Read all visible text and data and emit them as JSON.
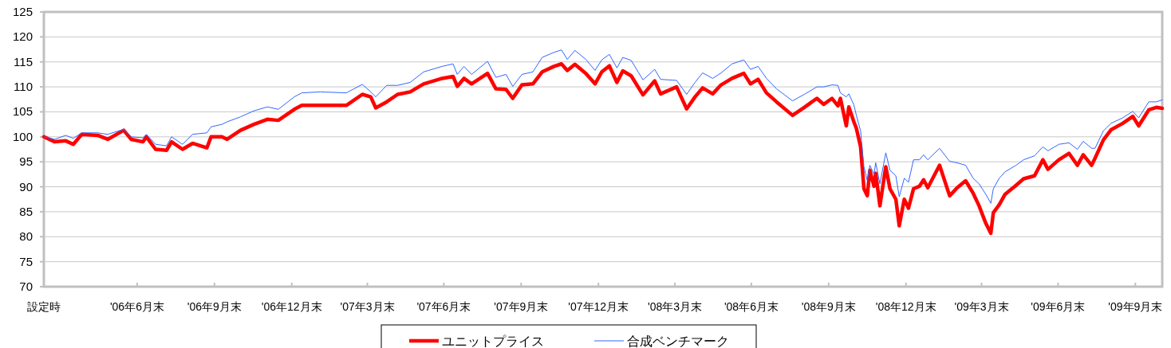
{
  "chart_data": {
    "type": "line",
    "x": [
      "2006-03-11",
      "2006-03-24",
      "2006-04-06",
      "2006-04-15",
      "2006-04-25",
      "2006-05-14",
      "2006-05-26",
      "2006-06-14",
      "2006-06-23",
      "2006-07-07",
      "2006-07-11",
      "2006-07-22",
      "2006-08-04",
      "2006-08-10",
      "2006-08-23",
      "2006-09-04",
      "2006-09-21",
      "2006-09-26",
      "2006-10-09",
      "2006-10-15",
      "2006-10-31",
      "2006-11-16",
      "2006-12-02",
      "2006-12-15",
      "2007-01-03",
      "2007-01-12",
      "2007-02-03",
      "2007-03-06",
      "2007-03-25",
      "2007-04-04",
      "2007-04-10",
      "2007-04-23",
      "2007-05-06",
      "2007-05-21",
      "2007-06-06",
      "2007-06-28",
      "2007-07-11",
      "2007-07-16",
      "2007-07-24",
      "2007-08-02",
      "2007-08-21",
      "2007-08-31",
      "2007-09-12",
      "2007-09-20",
      "2007-10-01",
      "2007-10-14",
      "2007-10-25",
      "2007-11-08",
      "2007-11-17",
      "2007-11-24",
      "2007-12-03",
      "2007-12-16",
      "2007-12-27",
      "2008-01-04",
      "2008-01-13",
      "2008-01-22",
      "2008-01-29",
      "2008-02-08",
      "2008-02-22",
      "2008-03-07",
      "2008-03-14",
      "2008-04-02",
      "2008-04-14",
      "2008-04-24",
      "2008-05-03",
      "2008-05-15",
      "2008-05-25",
      "2008-06-07",
      "2008-06-21",
      "2008-06-29",
      "2008-07-08",
      "2008-07-18",
      "2008-07-30",
      "2008-08-18",
      "2008-09-01",
      "2008-09-16",
      "2008-09-24",
      "2008-10-04",
      "2008-10-11",
      "2008-10-14",
      "2008-10-21",
      "2008-10-24",
      "2008-10-30",
      "2008-11-02",
      "2008-11-07",
      "2008-11-11",
      "2008-11-15",
      "2008-11-18",
      "2008-11-23",
      "2008-11-25",
      "2008-11-30",
      "2008-12-07",
      "2008-12-12",
      "2008-12-19",
      "2008-12-23",
      "2008-12-29",
      "2009-01-03",
      "2009-01-09",
      "2009-01-16",
      "2009-01-21",
      "2009-01-26",
      "2009-02-09",
      "2009-02-21",
      "2009-03-02",
      "2009-03-12",
      "2009-03-21",
      "2009-03-28",
      "2009-04-05",
      "2009-04-11",
      "2009-04-14",
      "2009-04-21",
      "2009-04-28",
      "2009-05-11",
      "2009-05-20",
      "2009-06-02",
      "2009-06-12",
      "2009-06-18",
      "2009-07-01",
      "2009-07-13",
      "2009-07-23",
      "2009-07-30",
      "2009-08-09",
      "2009-08-13",
      "2009-08-23",
      "2009-09-01",
      "2009-09-15",
      "2009-09-27",
      "2009-10-04",
      "2009-10-16",
      "2009-10-25",
      "2009-11-01"
    ],
    "series": [
      {
        "name": "ユニットプライス",
        "color": "#ff0000",
        "values": [
          100,
          99,
          99.2,
          98.5,
          100.5,
          100.3,
          99.5,
          101.3,
          99.5,
          99,
          100,
          97.5,
          97.3,
          99,
          97.5,
          98.7,
          97.8,
          100,
          100,
          99.5,
          101.3,
          102.5,
          103.5,
          103.3,
          105.5,
          106.3,
          106.3,
          106.3,
          108.5,
          108,
          105.8,
          107,
          108.5,
          109,
          110.6,
          111.7,
          112.1,
          110.1,
          111.7,
          110.6,
          112.7,
          109.6,
          109.5,
          107.7,
          110.4,
          110.6,
          113,
          114.1,
          114.6,
          113.3,
          114.5,
          112.7,
          110.6,
          113,
          114.2,
          110.9,
          113.2,
          112.2,
          108.4,
          111.2,
          108.6,
          110,
          105.6,
          108,
          109.8,
          108.6,
          110.4,
          111.7,
          112.7,
          110.6,
          111.5,
          108.8,
          107,
          104.3,
          105.9,
          107.7,
          106.5,
          107.7,
          106.2,
          107.7,
          102.2,
          106,
          103,
          101.7,
          98,
          89.6,
          88.2,
          93.3,
          90.1,
          92.7,
          86.2,
          94,
          89.6,
          87.5,
          82.2,
          87.5,
          85.7,
          89.6,
          90.1,
          91.4,
          89.8,
          94.3,
          88.2,
          89.8,
          91.2,
          88.7,
          86.2,
          82.7,
          80.7,
          84.8,
          86.4,
          88.5,
          90.3,
          91.6,
          92.2,
          95.4,
          93.5,
          95.4,
          96.7,
          94.3,
          96.4,
          94.3,
          95.7,
          99.4,
          101.4,
          102.7,
          104.1,
          102.2,
          105.4,
          105.9,
          105.7
        ]
      },
      {
        "name": "合成ベンチマーク",
        "color": "#3366ff",
        "values": [
          100,
          99.5,
          100.3,
          99.7,
          100.8,
          100.8,
          100.5,
          101.5,
          100,
          99.8,
          100.5,
          98.5,
          98.2,
          100,
          98.5,
          100.5,
          100.8,
          102,
          102.5,
          103,
          104,
          105.2,
          106,
          105.5,
          108,
          108.8,
          109,
          108.8,
          110.5,
          109,
          108,
          110.3,
          110.3,
          110.9,
          113,
          114.1,
          114.6,
          112.5,
          114.1,
          112.5,
          115.1,
          111.9,
          112.5,
          110.1,
          112.5,
          113,
          115.9,
          116.9,
          117.4,
          115.5,
          117.3,
          115.5,
          113.3,
          115.4,
          116.5,
          113.8,
          115.9,
          115.3,
          111.4,
          113.5,
          111.5,
          111.3,
          108.5,
          110.9,
          112.8,
          111.7,
          112.8,
          114.6,
          115.4,
          113.5,
          114.1,
          111.7,
          109.6,
          107.2,
          108.5,
          110,
          110,
          110.4,
          110.3,
          108.8,
          108,
          108.6,
          106.4,
          104.3,
          101.2,
          94,
          91.2,
          94.3,
          92.5,
          94.8,
          90.6,
          96.8,
          93.3,
          92.2,
          88,
          91.7,
          90.9,
          95.4,
          95.4,
          96.4,
          95.4,
          97.7,
          95.1,
          94.8,
          94.3,
          91.7,
          90.6,
          88.5,
          86.7,
          89.6,
          91.7,
          93,
          94.3,
          95.4,
          96.2,
          98,
          97.2,
          98.5,
          98.8,
          97.5,
          99.1,
          97.7,
          97.7,
          101.2,
          102.7,
          103.8,
          105.1,
          103.8,
          107,
          107,
          107.4
        ]
      }
    ],
    "xlim": [
      "2006-03-11",
      "2009-11-01"
    ],
    "xticks": [
      {
        "value": "2006-03-11",
        "label": "設定時"
      },
      {
        "value": "2006-06-30",
        "label": "'06年6月末"
      },
      {
        "value": "2006-09-30",
        "label": "'06年9月末"
      },
      {
        "value": "2006-12-31",
        "label": "'06年12月末"
      },
      {
        "value": "2007-03-31",
        "label": "'07年3月末"
      },
      {
        "value": "2007-06-30",
        "label": "'07年6月末"
      },
      {
        "value": "2007-09-30",
        "label": "'07年9月末"
      },
      {
        "value": "2007-12-31",
        "label": "'07年12月末"
      },
      {
        "value": "2008-03-31",
        "label": "'08年3月末"
      },
      {
        "value": "2008-06-30",
        "label": "'08年6月末"
      },
      {
        "value": "2008-09-30",
        "label": "'08年9月末"
      },
      {
        "value": "2008-12-31",
        "label": "'08年12月末"
      },
      {
        "value": "2009-03-31",
        "label": "'09年3月末"
      },
      {
        "value": "2009-06-30",
        "label": "'09年6月末"
      },
      {
        "value": "2009-09-30",
        "label": "'09年9月末"
      }
    ],
    "ylim": [
      70,
      125
    ],
    "yticks": [
      70,
      75,
      80,
      85,
      90,
      95,
      100,
      105,
      110,
      115,
      120,
      125
    ],
    "grid": "y",
    "legend": "bottom"
  }
}
